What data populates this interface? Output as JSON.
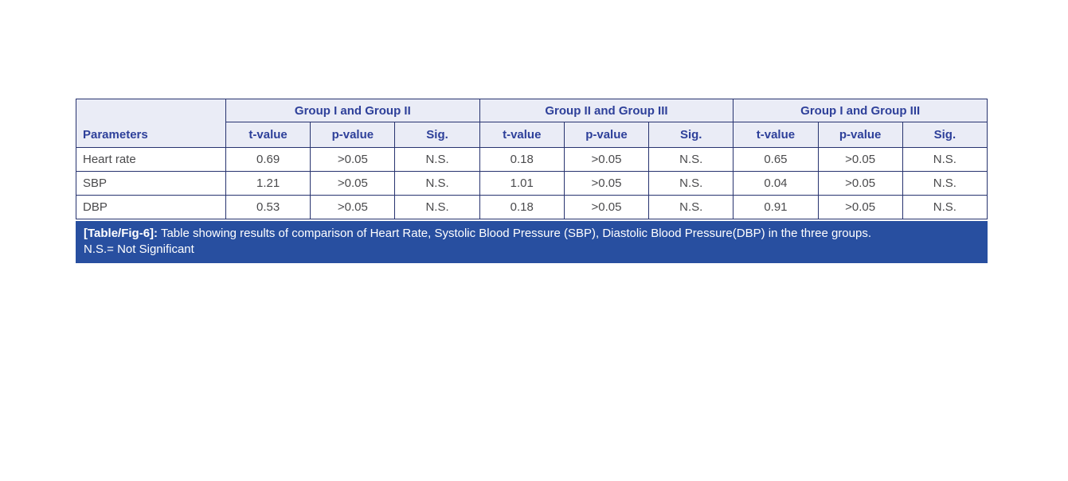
{
  "table": {
    "parameters_header": "Parameters",
    "groups": [
      {
        "label": "Group I and Group II"
      },
      {
        "label": "Group II and Group III"
      },
      {
        "label": "Group I and Group III"
      }
    ],
    "sub_headers": [
      "t-value",
      "p-value",
      "Sig."
    ],
    "rows": [
      {
        "parameter": "Heart rate",
        "values": [
          "0.69",
          ">0.05",
          "N.S.",
          "0.18",
          ">0.05",
          "N.S.",
          "0.65",
          ">0.05",
          "N.S."
        ]
      },
      {
        "parameter": "SBP",
        "values": [
          "1.21",
          ">0.05",
          "N.S.",
          "1.01",
          ">0.05",
          "N.S.",
          "0.04",
          ">0.05",
          "N.S."
        ]
      },
      {
        "parameter": "DBP",
        "values": [
          "0.53",
          ">0.05",
          "N.S.",
          "0.18",
          ">0.05",
          "N.S.",
          "0.91",
          ">0.05",
          "N.S."
        ]
      }
    ],
    "caption": {
      "label": "[Table/Fig-6]:",
      "text": " Table showing results of comparison of Heart Rate, Systolic Blood Pressure (SBP), Diastolic Blood Pressure(DBP) in the three groups.",
      "note": "N.S.= Not Significant"
    },
    "colors": {
      "header_bg": "#eaecf6",
      "header_text": "#2e409a",
      "border": "#27336f",
      "caption_bg": "#284fa0",
      "caption_text": "#ffffff",
      "data_text": "#4a4a4c"
    }
  },
  "chart_data": {
    "type": "table",
    "title": "[Table/Fig-6]: Table showing results of comparison of Heart Rate, Systolic Blood Pressure (SBP), Diastolic Blood Pressure(DBP) in the three groups. N.S.= Not Significant",
    "column_groups": [
      "Group I and Group II",
      "Group II and Group III",
      "Group I and Group III"
    ],
    "columns": [
      "Parameters",
      "t-value",
      "p-value",
      "Sig.",
      "t-value",
      "p-value",
      "Sig.",
      "t-value",
      "p-value",
      "Sig."
    ],
    "rows": [
      [
        "Heart rate",
        "0.69",
        ">0.05",
        "N.S.",
        "0.18",
        ">0.05",
        "N.S.",
        "0.65",
        ">0.05",
        "N.S."
      ],
      [
        "SBP",
        "1.21",
        ">0.05",
        "N.S.",
        "1.01",
        ">0.05",
        "N.S.",
        "0.04",
        ">0.05",
        "N.S."
      ],
      [
        "DBP",
        "0.53",
        ">0.05",
        "N.S.",
        "0.18",
        ">0.05",
        "N.S.",
        "0.91",
        ">0.05",
        "N.S."
      ]
    ]
  }
}
